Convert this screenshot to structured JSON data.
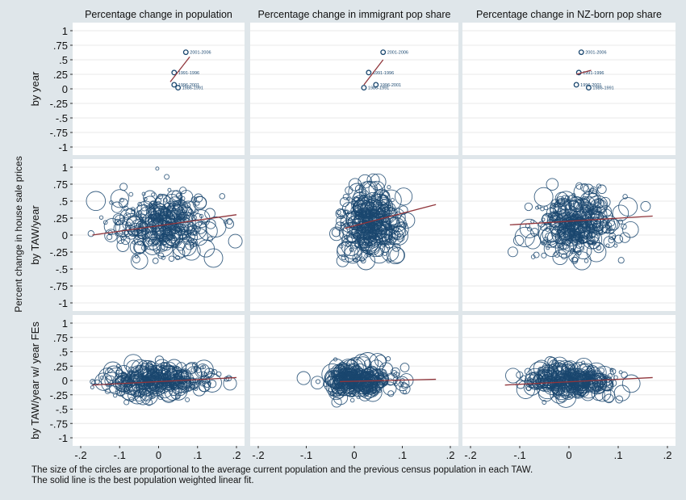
{
  "chart_data": {
    "type": "scatter",
    "ylabel": "Percent change in house sale prices",
    "columns": [
      "Percentage change in population",
      "Percentage change in immigrant pop share",
      "Percentage change in NZ-born pop share"
    ],
    "rows": [
      "by year",
      "by TAW/year",
      "by TAW/year w/ year FEs"
    ],
    "yticks": [
      "1",
      ".75",
      ".5",
      ".25",
      "0",
      "-.25",
      "-.5",
      "-.75",
      "-1"
    ],
    "xticks": [
      [
        "-.2",
        "-.1",
        "0",
        ".1",
        ".2"
      ],
      [
        "-.2",
        "-.1",
        "0",
        ".1",
        ".2"
      ],
      [
        "-.2",
        "-.1",
        "0",
        ".1",
        ".2"
      ]
    ],
    "xlims": [
      [
        -0.2,
        0.2
      ],
      [
        -0.2,
        0.2
      ],
      [
        -0.2,
        0.2
      ]
    ],
    "ylim": [
      -1,
      1
    ],
    "grid": true,
    "year_points": [
      [
        {
          "label": "2001-2006",
          "x": 0.07,
          "y": 0.63
        },
        {
          "label": "1991-1996",
          "x": 0.04,
          "y": 0.28
        },
        {
          "label": "1996-2001",
          "x": 0.04,
          "y": 0.07
        },
        {
          "label": "1986-1991",
          "x": 0.05,
          "y": 0.02
        }
      ],
      [
        {
          "label": "2001-2006",
          "x": 0.06,
          "y": 0.63
        },
        {
          "label": "1991-1996",
          "x": 0.03,
          "y": 0.28
        },
        {
          "label": "1996-2001",
          "x": 0.045,
          "y": 0.07
        },
        {
          "label": "1986-1991",
          "x": 0.02,
          "y": 0.02
        }
      ],
      [
        {
          "label": "2001-2006",
          "x": 0.025,
          "y": 0.63
        },
        {
          "label": "1991-1996",
          "x": 0.02,
          "y": 0.28
        },
        {
          "label": "1996-2001",
          "x": 0.015,
          "y": 0.07
        },
        {
          "label": "1986-1991",
          "x": 0.04,
          "y": 0.02
        }
      ]
    ],
    "fit_lines": [
      [
        [
          0.03,
          0.12,
          0.08,
          0.55
        ],
        [
          -0.17,
          0.0,
          0.2,
          0.3
        ],
        [
          -0.17,
          -0.08,
          0.2,
          0.05
        ]
      ],
      [
        [
          0.02,
          0.07,
          0.06,
          0.5
        ],
        [
          -0.02,
          0.1,
          0.17,
          0.45
        ],
        [
          -0.03,
          -0.02,
          0.17,
          0.02
        ]
      ],
      [
        [
          0.015,
          0.25,
          0.045,
          0.32
        ],
        [
          -0.12,
          0.15,
          0.17,
          0.28
        ],
        [
          -0.13,
          -0.08,
          0.17,
          0.05
        ]
      ]
    ],
    "cloud_params": [
      [
        null,
        {
          "cx": 0.01,
          "cy": 0.15,
          "sx": 0.065,
          "sy": 0.22,
          "n": 340,
          "xmin": -0.17,
          "xmax": 0.2
        },
        {
          "cx": 0.0,
          "cy": 0.0,
          "sx": 0.07,
          "sy": 0.13,
          "n": 330,
          "xmin": -0.18,
          "xmax": 0.2
        }
      ],
      [
        null,
        {
          "cx": 0.03,
          "cy": 0.2,
          "sx": 0.03,
          "sy": 0.25,
          "n": 340,
          "xmin": -0.04,
          "xmax": 0.17
        },
        {
          "cx": 0.0,
          "cy": 0.0,
          "sx": 0.035,
          "sy": 0.13,
          "n": 330,
          "xmin": -0.05,
          "xmax": 0.17
        }
      ],
      [
        null,
        {
          "cx": 0.015,
          "cy": 0.15,
          "sx": 0.04,
          "sy": 0.22,
          "n": 340,
          "xmin": -0.12,
          "xmax": 0.17
        },
        {
          "cx": 0.0,
          "cy": 0.0,
          "sx": 0.045,
          "sy": 0.13,
          "n": 330,
          "xmin": -0.13,
          "xmax": 0.17
        }
      ]
    ],
    "colors": {
      "circle": "#1a476f",
      "fit": "#90353b",
      "bg": "#dfe6ea",
      "plot": "#ffffff",
      "grid": "#e8e8e8"
    }
  },
  "notes": [
    "The size of the circles are proportional to the average current population and the previous census population in each TAW.",
    "The solid line is the best population weighted linear fit."
  ]
}
